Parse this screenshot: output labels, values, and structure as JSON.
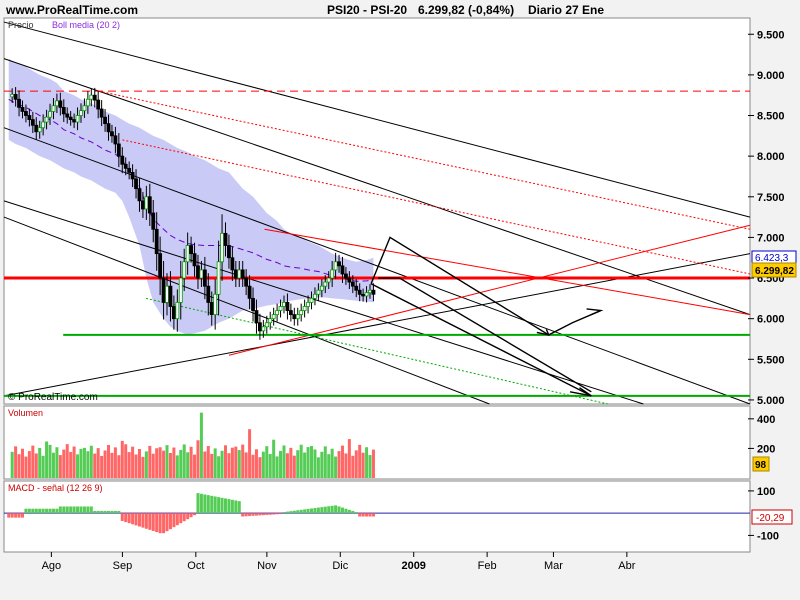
{
  "header": {
    "site": "www.ProRealTime.com",
    "instrument": "PSI20 - PSI-20",
    "quote": "6.299,82 (-0,84%)",
    "period": "Diario 27 Ene"
  },
  "price_panel": {
    "label_price": "Precio",
    "label_boll": "Boll media (20 2)",
    "copyright": "© ProRealTime.com",
    "last_tag": "6.299,82",
    "upper_tag": "6.423,3"
  },
  "volume_panel": {
    "label": "Volumen",
    "last_tag": "98"
  },
  "macd_panel": {
    "label": "MACD - señal (12 26 9)",
    "last_tag": "-20,29"
  },
  "colors": {
    "background": "#f2f2f2",
    "panel": "#ffffff",
    "bollinger_band": "#c4c4f6",
    "bollinger_mid": "#6a00c8",
    "up_candle": "#00b000",
    "down_candle": "#ff0000",
    "volume_up": "#55cc55",
    "volume_down": "#ff6666",
    "macd_zero": "#2222aa",
    "support": "#00aa00",
    "resistance": "#ff0000"
  },
  "chart_data": [
    {
      "type": "candlestick",
      "title": "PSI20 - PSI-20",
      "ylim": [
        4950,
        9700
      ],
      "y_ticks": [
        "9.500",
        "9.000",
        "8.500",
        "8.000",
        "7.500",
        "7.000",
        "6.500",
        "6.000",
        "5.500",
        "5.000"
      ],
      "y_tick_values": [
        9500,
        9000,
        8500,
        8000,
        7500,
        7000,
        6500,
        6000,
        5500,
        5000
      ],
      "x_ticks": [
        "Ago",
        "Sep",
        "Oct",
        "Nov",
        "Dic",
        "2009",
        "Feb",
        "Mar",
        "Abr"
      ],
      "x_tick_days": [
        -110,
        -80,
        -49,
        -19,
        12,
        43,
        74,
        102,
        133
      ],
      "x_range_days": [
        -130,
        185
      ],
      "last_day": 26,
      "closes": [
        8730,
        8760,
        8700,
        8600,
        8550,
        8500,
        8450,
        8380,
        8300,
        8350,
        8420,
        8480,
        8550,
        8620,
        8680,
        8600,
        8520,
        8480,
        8450,
        8420,
        8500,
        8560,
        8620,
        8700,
        8750,
        8690,
        8580,
        8480,
        8400,
        8300,
        8250,
        8150,
        8000,
        7900,
        7850,
        7800,
        7720,
        7600,
        7450,
        7350,
        7500,
        7300,
        7100,
        6800,
        6500,
        6200,
        6400,
        6150,
        6000,
        6200,
        6500,
        6700,
        6900,
        6800,
        6650,
        6500,
        6600,
        6400,
        6200,
        6050,
        6300,
        6700,
        7050,
        6900,
        6750,
        6600,
        6500,
        6600,
        6500,
        6400,
        6250,
        6100,
        5950,
        5850,
        5900,
        5950,
        6000,
        6050,
        6100,
        6150,
        6200,
        6100,
        6050,
        6000,
        6050,
        6100,
        6150,
        6200,
        6250,
        6300,
        6350,
        6400,
        6450,
        6500,
        6600,
        6700,
        6650,
        6550,
        6500,
        6450,
        6400,
        6350,
        6300,
        6280,
        6320,
        6350,
        6300
      ],
      "bollinger": {
        "upper_approx": [
          9200,
          9150,
          9100,
          9050,
          9000,
          8950,
          8900,
          8800,
          8750,
          8700,
          8650,
          8600,
          8550,
          8500,
          8450,
          8400,
          8350,
          8300,
          8250,
          8200,
          8150,
          8100,
          8050,
          8000,
          7950,
          7900,
          7850,
          7800,
          7700,
          7600,
          7500,
          7400,
          7300,
          7200,
          7100,
          7050,
          7000,
          6950,
          6900,
          6850,
          6800,
          6750,
          6720,
          6700,
          6720,
          6750
        ],
        "lower_approx": [
          8200,
          8150,
          8100,
          8050,
          8000,
          7950,
          7900,
          7850,
          7800,
          7750,
          7700,
          7650,
          7600,
          7550,
          7450,
          7250,
          6900,
          6500,
          6200,
          6000,
          5900,
          5850,
          5800,
          5820,
          5850,
          5900,
          5950,
          6000,
          6050,
          6100,
          6120,
          6140,
          6160,
          6180,
          6200,
          6220,
          6240,
          6250,
          6260,
          6260,
          6250,
          6240,
          6230,
          6220,
          6210,
          6200
        ]
      },
      "levels": {
        "resistance_dashed": 8800,
        "red_horizontal": 6500,
        "green_support_1": 5800,
        "green_support_2": 5050
      }
    },
    {
      "type": "bar",
      "title": "Volumen",
      "y_ticks": [
        "400",
        "200"
      ],
      "y_tick_values": [
        400,
        200
      ],
      "ylim": [
        0,
        480
      ]
    },
    {
      "type": "bar",
      "title": "MACD - señal (12 26 9)",
      "y_ticks": [
        "100",
        "0",
        "-100"
      ],
      "y_tick_values": [
        100,
        0,
        -100
      ],
      "ylim": [
        -170,
        140
      ]
    }
  ]
}
